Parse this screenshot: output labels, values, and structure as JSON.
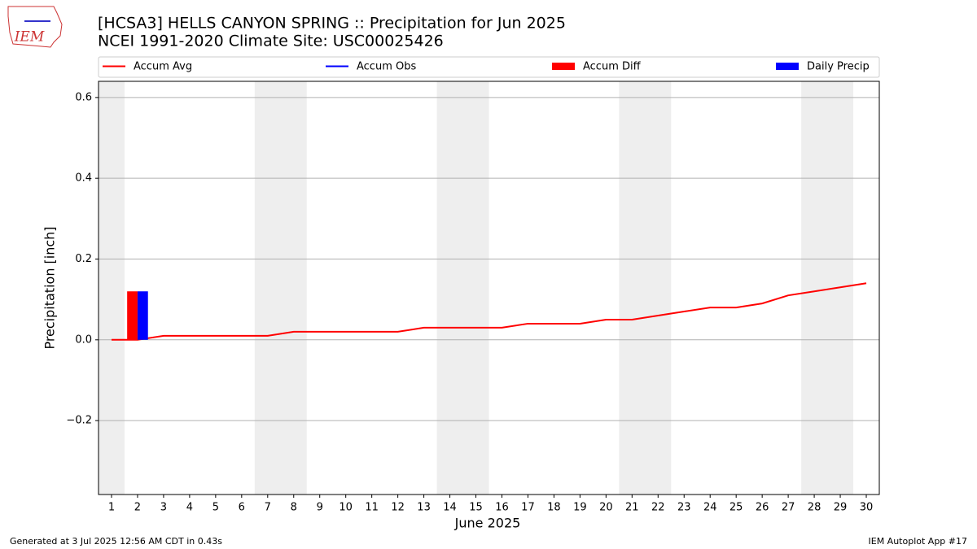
{
  "chart_data": {
    "type": "line",
    "title": "[HCSA3] HELLS CANYON SPRING :: Precipitation for Jun 2025",
    "subtitle": "NCEI 1991-2020 Climate Site: USC00025426",
    "logo_text": "IEM",
    "x_label": "June 2025",
    "y_label": "Precipitation [inch]",
    "x": [
      1,
      2,
      3,
      4,
      5,
      6,
      7,
      8,
      9,
      10,
      11,
      12,
      13,
      14,
      15,
      16,
      17,
      18,
      19,
      20,
      21,
      22,
      23,
      24,
      25,
      26,
      27,
      28,
      29,
      30
    ],
    "xlim": [
      0.5,
      30.5
    ],
    "ylim": [
      -0.383,
      0.64
    ],
    "yticks": [
      {
        "value": -0.2,
        "label": "−0.2"
      },
      {
        "value": 0,
        "label": "0.0"
      },
      {
        "value": 0.2,
        "label": "0.2"
      },
      {
        "value": 0.4,
        "label": "0.4"
      },
      {
        "value": 0.6,
        "label": "0.6"
      }
    ],
    "grid": true,
    "shaded_spans": [
      [
        0.5,
        1.5
      ],
      [
        6.5,
        8.5
      ],
      [
        13.5,
        15.5
      ],
      [
        20.5,
        22.5
      ],
      [
        27.5,
        29.5
      ]
    ],
    "series": [
      {
        "name": "Accum Avg",
        "type": "line",
        "color": "#ff0000",
        "values": [
          0,
          0,
          0.01,
          0.01,
          0.01,
          0.01,
          0.01,
          0.02,
          0.02,
          0.02,
          0.02,
          0.02,
          0.03,
          0.03,
          0.03,
          0.03,
          0.04,
          0.04,
          0.04,
          0.05,
          0.05,
          0.06,
          0.07,
          0.08,
          0.08,
          0.09,
          0.11,
          0.12,
          0.13,
          0.14
        ]
      },
      {
        "name": "Accum Obs",
        "type": "line",
        "color": "#0000ff",
        "values": [
          null,
          null,
          null,
          null,
          null,
          null,
          null,
          null,
          null,
          null,
          null,
          null,
          null,
          null,
          null,
          null,
          null,
          null,
          null,
          null,
          null,
          null,
          null,
          null,
          null,
          null,
          null,
          null,
          null,
          null
        ]
      },
      {
        "name": "Accum Diff",
        "type": "bar",
        "color": "#ff0000",
        "values": [
          null,
          0.12,
          null,
          null,
          null,
          null,
          null,
          null,
          null,
          null,
          null,
          null,
          null,
          null,
          null,
          null,
          null,
          null,
          null,
          null,
          null,
          null,
          null,
          null,
          null,
          null,
          null,
          null,
          null,
          null
        ]
      },
      {
        "name": "Daily Precip",
        "type": "bar",
        "color": "#0000ff",
        "values": [
          null,
          0.12,
          null,
          null,
          null,
          null,
          null,
          null,
          null,
          null,
          null,
          null,
          null,
          null,
          null,
          null,
          null,
          null,
          null,
          null,
          null,
          null,
          null,
          null,
          null,
          null,
          null,
          null,
          null,
          null
        ]
      }
    ],
    "footer_left": "Generated at 3 Jul 2025 12:56 AM CDT in 0.43s",
    "footer_right": "IEM Autoplot App #17"
  }
}
